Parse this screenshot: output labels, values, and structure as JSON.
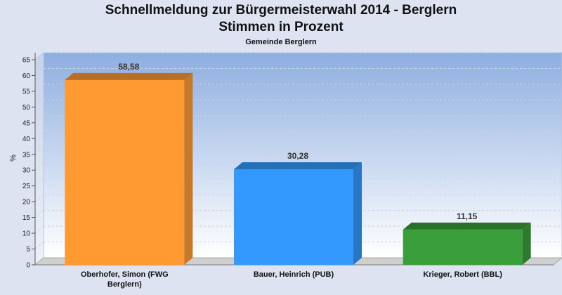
{
  "chart_data": {
    "type": "bar",
    "title": "Schnellmeldung zur Bürgermeisterwahl 2014 - Berglern",
    "title2": "Stimmen in Prozent",
    "subtitle": "Gemeinde Berglern",
    "ylabel": "%",
    "ylim": [
      0,
      65
    ],
    "yticks": [
      0,
      5,
      10,
      15,
      20,
      25,
      30,
      35,
      40,
      45,
      50,
      55,
      60,
      65
    ],
    "categories": [
      [
        "Oberhofer, Simon (FWG",
        "Berglern)"
      ],
      [
        "Bauer, Heinrich (PUB)"
      ],
      [
        "Krieger, Robert (BBL)"
      ]
    ],
    "values": [
      58.58,
      30.28,
      11.15
    ],
    "value_labels": [
      "58,58",
      "30,28",
      "11,15"
    ],
    "colors": [
      "#ff9a33",
      "#3399ff",
      "#3a9e3a"
    ],
    "grid": true
  }
}
